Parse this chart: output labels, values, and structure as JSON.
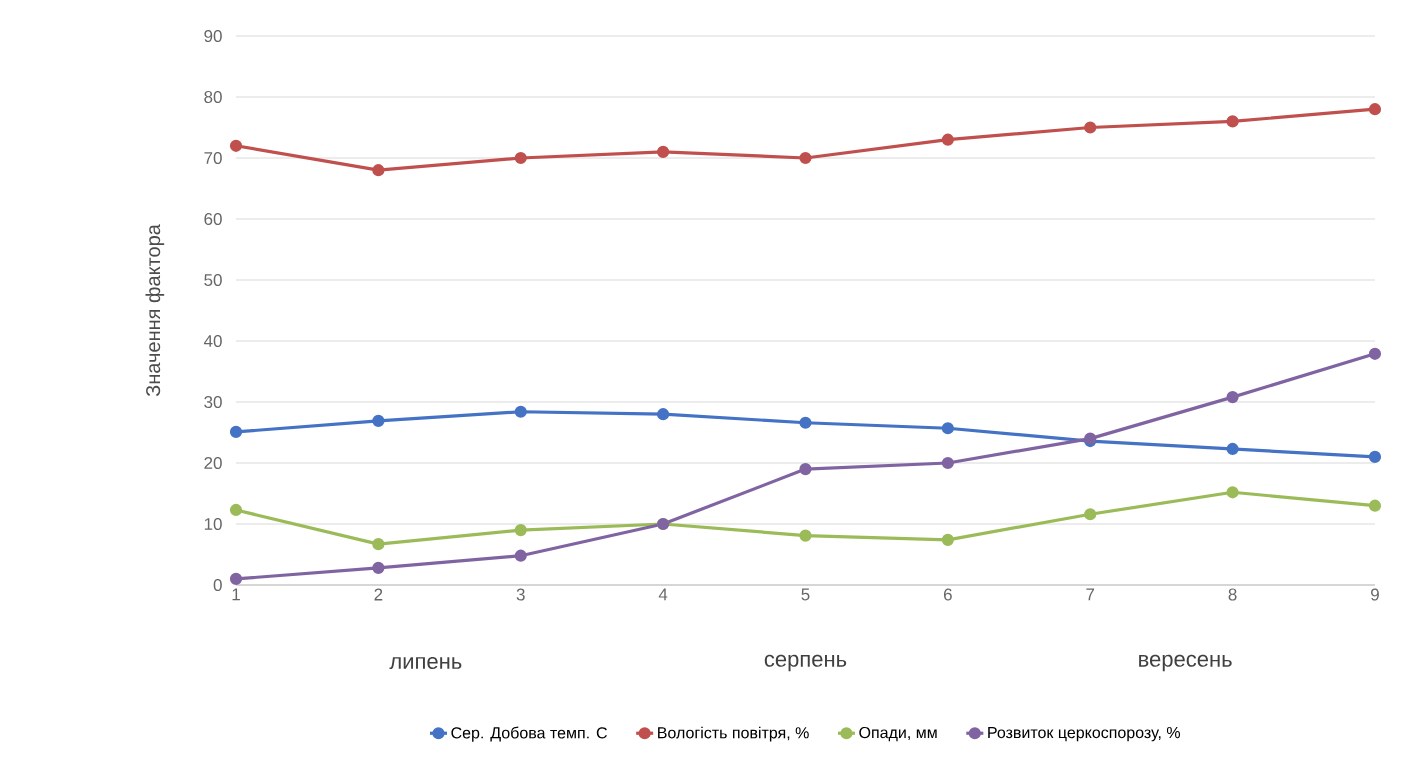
{
  "chart_data": {
    "type": "line",
    "ylabel": "Значення фактора",
    "x": [
      1,
      2,
      3,
      4,
      5,
      6,
      7,
      8,
      9
    ],
    "xlim": [
      1,
      9
    ],
    "xticks": [
      1,
      2,
      3,
      4,
      5,
      6,
      7,
      8,
      9
    ],
    "ylim": [
      0,
      90
    ],
    "yticks": [
      0,
      10,
      20,
      30,
      40,
      50,
      60,
      70,
      80,
      90
    ],
    "grid": "y",
    "legend": "bottom",
    "marker": "circle",
    "line_style": "solid",
    "series": [
      {
        "name": "Сер. Добова темп. С",
        "color": "#4472c4",
        "values": [
          25.1,
          26.9,
          28.4,
          28.0,
          26.6,
          25.7,
          23.6,
          22.3,
          21.0
        ]
      },
      {
        "name": "Вологість повітря, %",
        "color": "#c0504d",
        "values": [
          72,
          68,
          70,
          71,
          70,
          73,
          75,
          76,
          78
        ]
      },
      {
        "name": "Опади, мм",
        "color": "#9bbb59",
        "values": [
          12.3,
          6.7,
          9.0,
          10.0,
          8.1,
          7.4,
          11.6,
          15.2,
          13.0
        ]
      },
      {
        "name": "Розвиток церкоспорозу, %",
        "color": "#8064a2",
        "values": [
          1,
          2.8,
          4.8,
          10,
          19,
          20,
          24,
          30.8,
          37.9
        ]
      }
    ],
    "annotations": [
      "липень",
      "серпень",
      "вересень"
    ]
  }
}
